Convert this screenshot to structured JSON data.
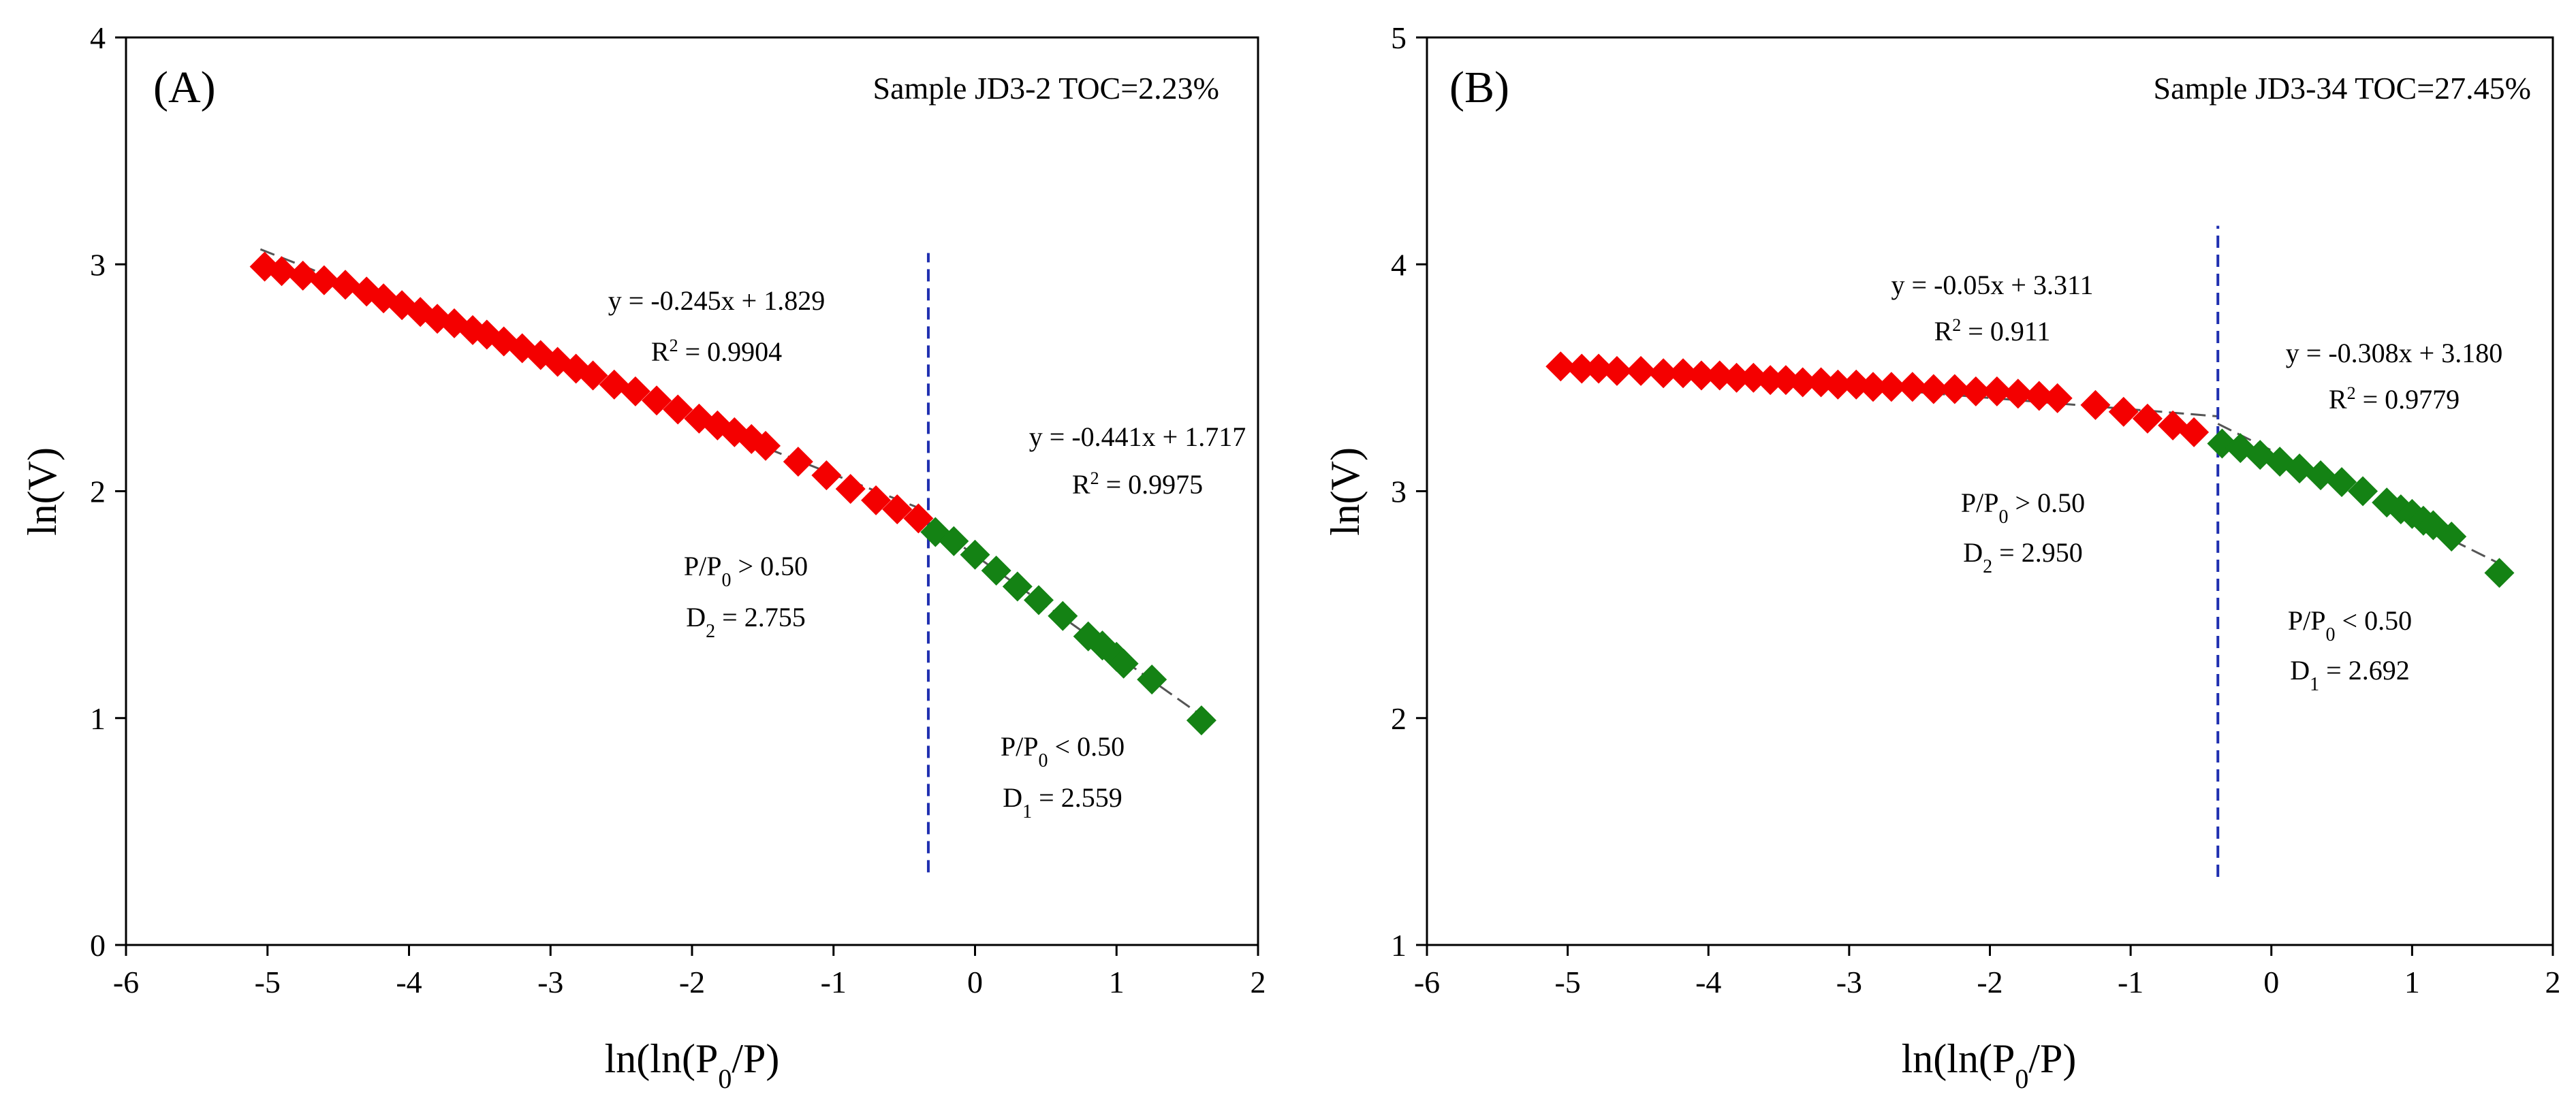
{
  "colors": {
    "low_pressure": "#f40000",
    "high_pressure": "#148214",
    "divider": "#1f2fb0",
    "fit": "#555555"
  },
  "chart_data": [
    {
      "type": "scatter",
      "panel_label": "(A)",
      "sample_label": "Sample JD3-2 TOC=2.23%",
      "xlabel": {
        "pre": "ln(ln(P",
        "sub": "0",
        "post": "/P)"
      },
      "ylabel": "ln(V)",
      "xlim": [
        -6,
        2
      ],
      "ylim": [
        0,
        4
      ],
      "xticks": [
        -6,
        -5,
        -4,
        -3,
        -2,
        -1,
        0,
        1,
        2
      ],
      "yticks": [
        0,
        1,
        2,
        3,
        4
      ],
      "divider_x": -0.33,
      "divider_y_range": [
        0.32,
        3.05
      ],
      "series": [
        {
          "name": "P/P0 > 0.50",
          "color_key": "low_pressure",
          "x": [
            -5.02,
            -4.9,
            -4.75,
            -4.6,
            -4.45,
            -4.3,
            -4.18,
            -4.05,
            -3.92,
            -3.8,
            -3.68,
            -3.55,
            -3.45,
            -3.33,
            -3.2,
            -3.07,
            -2.95,
            -2.82,
            -2.7,
            -2.55,
            -2.4,
            -2.25,
            -2.1,
            -1.95,
            -1.82,
            -1.7,
            -1.58,
            -1.48,
            -1.25,
            -1.05,
            -0.88,
            -0.7,
            -0.55,
            -0.4
          ],
          "y": [
            2.99,
            2.97,
            2.95,
            2.93,
            2.91,
            2.88,
            2.85,
            2.82,
            2.79,
            2.76,
            2.74,
            2.71,
            2.69,
            2.66,
            2.63,
            2.6,
            2.57,
            2.54,
            2.51,
            2.47,
            2.44,
            2.4,
            2.36,
            2.32,
            2.29,
            2.26,
            2.23,
            2.2,
            2.13,
            2.07,
            2.01,
            1.96,
            1.92,
            1.88
          ]
        },
        {
          "name": "P/P0 < 0.50",
          "color_key": "high_pressure",
          "x": [
            -0.28,
            -0.15,
            0.0,
            0.15,
            0.3,
            0.45,
            0.62,
            0.8,
            0.9,
            1.0,
            1.05,
            1.25,
            1.6
          ],
          "y": [
            1.82,
            1.78,
            1.72,
            1.65,
            1.58,
            1.52,
            1.45,
            1.36,
            1.32,
            1.27,
            1.24,
            1.17,
            0.99
          ]
        }
      ],
      "fits": [
        {
          "equation": "y = -0.245x + 1.829",
          "r2_pre": "R",
          "r2_sup": "2",
          "r2_post": " = 0.9904",
          "x_range": [
            -5.05,
            -0.33
          ],
          "color_key": "fit"
        },
        {
          "equation": "y = -0.441x + 1.717",
          "r2_pre": "R",
          "r2_sup": "2",
          "r2_post": " = 0.9975",
          "x_range": [
            -0.33,
            1.65
          ],
          "color_key": "fit"
        }
      ],
      "annotations": [
        {
          "pre": "P/P",
          "sub": "0",
          "post": " > 0.50",
          "d_pre": "D",
          "d_sub": "2",
          "d_post": " = 2.755"
        },
        {
          "pre": "P/P",
          "sub": "0",
          "post": " < 0.50",
          "d_pre": "D",
          "d_sub": "1",
          "d_post": " = 2.559"
        }
      ]
    },
    {
      "type": "scatter",
      "panel_label": "(B)",
      "sample_label": "Sample JD3-34 TOC=27.45%",
      "xlabel": {
        "pre": "ln(ln(P",
        "sub": "0",
        "post": "/P)"
      },
      "ylabel": "ln(V)",
      "xlim": [
        -6,
        2
      ],
      "ylim": [
        1,
        5
      ],
      "xticks": [
        -6,
        -5,
        -4,
        -3,
        -2,
        -1,
        0,
        1,
        2
      ],
      "yticks": [
        1,
        2,
        3,
        4,
        5
      ],
      "divider_x": -0.38,
      "divider_y_range": [
        1.3,
        4.17
      ],
      "series": [
        {
          "name": "P/P0 > 0.50",
          "color_key": "low_pressure",
          "x": [
            -5.05,
            -4.9,
            -4.78,
            -4.65,
            -4.48,
            -4.32,
            -4.18,
            -4.05,
            -3.92,
            -3.8,
            -3.68,
            -3.56,
            -3.45,
            -3.33,
            -3.2,
            -3.08,
            -2.95,
            -2.83,
            -2.7,
            -2.55,
            -2.4,
            -2.25,
            -2.1,
            -1.95,
            -1.8,
            -1.65,
            -1.52,
            -1.25,
            -1.05,
            -0.88,
            -0.7,
            -0.55
          ],
          "y": [
            3.55,
            3.54,
            3.54,
            3.53,
            3.53,
            3.52,
            3.52,
            3.51,
            3.51,
            3.5,
            3.5,
            3.49,
            3.49,
            3.48,
            3.48,
            3.47,
            3.47,
            3.46,
            3.46,
            3.46,
            3.45,
            3.45,
            3.44,
            3.44,
            3.43,
            3.42,
            3.41,
            3.38,
            3.35,
            3.32,
            3.29,
            3.26
          ]
        },
        {
          "name": "P/P0 < 0.50",
          "color_key": "high_pressure",
          "x": [
            -0.35,
            -0.22,
            -0.08,
            0.06,
            0.2,
            0.35,
            0.5,
            0.65,
            0.82,
            0.92,
            1.0,
            1.08,
            1.15,
            1.28,
            1.62
          ],
          "y": [
            3.21,
            3.19,
            3.16,
            3.13,
            3.1,
            3.07,
            3.04,
            3.0,
            2.95,
            2.92,
            2.9,
            2.87,
            2.85,
            2.8,
            2.64
          ]
        }
      ],
      "fits": [
        {
          "equation": "y = -0.05x + 3.311",
          "r2_pre": "R",
          "r2_sup": "2",
          "r2_post": " = 0.911",
          "x_range": [
            -5.05,
            -0.38
          ],
          "color_key": "fit"
        },
        {
          "equation": "y = -0.308x + 3.180",
          "r2_pre": "R",
          "r2_sup": "2",
          "r2_post": " = 0.9779",
          "x_range": [
            -0.38,
            1.65
          ],
          "color_key": "fit"
        }
      ],
      "annotations": [
        {
          "pre": "P/P",
          "sub": "0",
          "post": " > 0.50",
          "d_pre": "D",
          "d_sub": "2",
          "d_post": " = 2.950"
        },
        {
          "pre": "P/P",
          "sub": "0",
          "post": " < 0.50",
          "d_pre": "D",
          "d_sub": "1",
          "d_post": " = 2.692"
        }
      ]
    }
  ]
}
